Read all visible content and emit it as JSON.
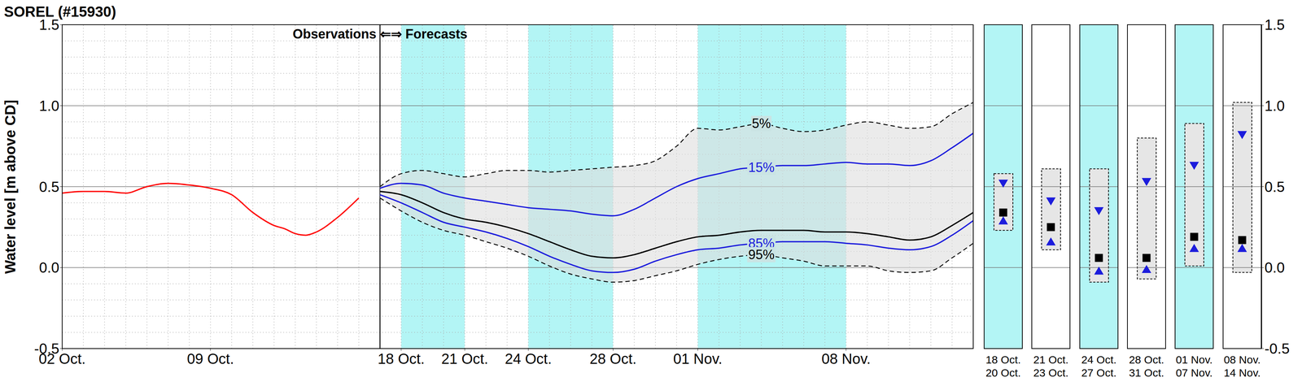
{
  "chart_data": [
    {
      "type": "line",
      "title": "SOREL (#15930)",
      "ylabel": "Water level [m above CD]",
      "annotation": "Observations ⇐⇒ Forecasts",
      "forecast_start": 17,
      "xlim": [
        2,
        45
      ],
      "xticks": [
        {
          "value": 2,
          "label": "02 Oct."
        },
        {
          "value": 9,
          "label": "09 Oct."
        },
        {
          "value": 18,
          "label": "18 Oct."
        },
        {
          "value": 21,
          "label": "21 Oct."
        },
        {
          "value": 24,
          "label": "24 Oct."
        },
        {
          "value": 28,
          "label": "28 Oct."
        },
        {
          "value": 32,
          "label": "01 Nov."
        },
        {
          "value": 39,
          "label": "08 Nov."
        }
      ],
      "ylim": [
        -0.5,
        1.5
      ],
      "yticks": [
        -0.5,
        {
          "value": 0,
          "label": "0.0"
        },
        0.5,
        {
          "value": 1,
          "label": "1.0"
        },
        1.5
      ],
      "minor_yticks": [
        -0.4,
        -0.3,
        -0.2,
        -0.1,
        0.1,
        0.2,
        0.3,
        0.4,
        0.6,
        0.7,
        0.8,
        0.9,
        1.1,
        1.2,
        1.3,
        1.4
      ],
      "grid": true,
      "shaded_periods": [
        {
          "start": 18,
          "end": 21,
          "color": "#b3f5f5"
        },
        {
          "start": 24,
          "end": 28,
          "color": "#b3f5f5"
        },
        {
          "start": 32,
          "end": 39,
          "color": "#b3f5f5"
        }
      ],
      "band": {
        "upper": "5%",
        "lower": "95%",
        "color": "#dedede"
      },
      "series": [
        {
          "color": "#ff0000",
          "x": [
            2,
            3,
            4,
            5,
            6,
            7,
            8,
            9,
            10,
            11,
            12,
            12.5,
            13,
            13.5,
            14,
            15,
            16
          ],
          "values": [
            0.46,
            0.47,
            0.47,
            0.46,
            0.5,
            0.52,
            0.51,
            0.49,
            0.45,
            0.34,
            0.26,
            0.24,
            0.21,
            0.2,
            0.22,
            0.31,
            0.43
          ]
        },
        {
          "name": "5%",
          "color": "#000000",
          "line_style": "dashed",
          "x": [
            17,
            18,
            19,
            20,
            21,
            22,
            23,
            24,
            25,
            26,
            27,
            28,
            29,
            30,
            31,
            32,
            33,
            34,
            35,
            36,
            37,
            38,
            39,
            40,
            41,
            42,
            43,
            44,
            45
          ],
          "values": [
            0.5,
            0.58,
            0.6,
            0.58,
            0.56,
            0.58,
            0.6,
            0.6,
            0.59,
            0.6,
            0.61,
            0.62,
            0.63,
            0.66,
            0.75,
            0.86,
            0.85,
            0.87,
            0.89,
            0.86,
            0.84,
            0.85,
            0.88,
            0.9,
            0.88,
            0.86,
            0.87,
            0.95,
            1.02
          ]
        },
        {
          "name": "15%",
          "color": "#1c1cdc",
          "line_style": "solid",
          "x": [
            17,
            18,
            19,
            20,
            21,
            22,
            23,
            24,
            25,
            26,
            27,
            28,
            29,
            30,
            31,
            32,
            33,
            34,
            35,
            36,
            37,
            38,
            39,
            40,
            41,
            42,
            43,
            44,
            45
          ],
          "values": [
            0.49,
            0.52,
            0.51,
            0.46,
            0.43,
            0.41,
            0.39,
            0.37,
            0.36,
            0.35,
            0.33,
            0.32,
            0.36,
            0.43,
            0.5,
            0.55,
            0.58,
            0.61,
            0.62,
            0.63,
            0.63,
            0.64,
            0.65,
            0.64,
            0.64,
            0.63,
            0.66,
            0.74,
            0.83
          ]
        },
        {
          "color": "#000000",
          "line_style": "solid",
          "x": [
            17,
            18,
            19,
            20,
            21,
            22,
            23,
            24,
            25,
            26,
            27,
            28,
            29,
            30,
            31,
            32,
            33,
            34,
            35,
            36,
            37,
            38,
            39,
            40,
            41,
            42,
            43,
            44,
            45
          ],
          "values": [
            0.47,
            0.45,
            0.4,
            0.34,
            0.3,
            0.28,
            0.25,
            0.21,
            0.16,
            0.11,
            0.07,
            0.06,
            0.08,
            0.12,
            0.16,
            0.19,
            0.2,
            0.22,
            0.23,
            0.23,
            0.23,
            0.22,
            0.22,
            0.21,
            0.19,
            0.17,
            0.19,
            0.26,
            0.34
          ]
        },
        {
          "name": "85%",
          "color": "#1c1cdc",
          "line_style": "solid",
          "x": [
            17,
            18,
            19,
            20,
            21,
            22,
            23,
            24,
            25,
            26,
            27,
            28,
            29,
            30,
            31,
            32,
            33,
            34,
            35,
            36,
            37,
            38,
            39,
            40,
            41,
            42,
            43,
            44,
            45
          ],
          "values": [
            0.45,
            0.4,
            0.34,
            0.28,
            0.25,
            0.22,
            0.18,
            0.13,
            0.07,
            0.02,
            -0.02,
            -0.03,
            -0.01,
            0.04,
            0.08,
            0.11,
            0.12,
            0.14,
            0.15,
            0.16,
            0.16,
            0.16,
            0.15,
            0.14,
            0.12,
            0.11,
            0.13,
            0.2,
            0.29
          ]
        },
        {
          "name": "95%",
          "color": "#000000",
          "line_style": "dashed",
          "x": [
            17,
            18,
            19,
            20,
            21,
            22,
            23,
            24,
            25,
            26,
            27,
            28,
            29,
            30,
            31,
            32,
            33,
            34,
            35,
            36,
            37,
            38,
            39,
            40,
            41,
            42,
            43,
            44,
            45
          ],
          "values": [
            0.43,
            0.35,
            0.28,
            0.23,
            0.2,
            0.16,
            0.12,
            0.07,
            0.01,
            -0.04,
            -0.07,
            -0.09,
            -0.08,
            -0.05,
            -0.02,
            0.02,
            0.05,
            0.07,
            0.08,
            0.06,
            0.04,
            0.01,
            0.01,
            0.01,
            -0.02,
            -0.03,
            -0.02,
            0.06,
            0.15
          ]
        }
      ]
    },
    {
      "type": "box",
      "categories": [
        [
          "18 Oct.",
          "20 Oct."
        ],
        [
          "21 Oct.",
          "23 Oct."
        ],
        [
          "24 Oct.",
          "27 Oct."
        ],
        [
          "28 Oct.",
          "31 Oct."
        ],
        [
          "01 Nov.",
          "07 Nov."
        ],
        [
          "08 Nov.",
          "14 Nov."
        ]
      ],
      "colors": [
        "#b3f5f5",
        "#ffffff",
        "#b3f5f5",
        "#ffffff",
        "#b3f5f5",
        "#ffffff"
      ],
      "box_low": [
        0.23,
        0.11,
        -0.09,
        -0.07,
        0.01,
        -0.03
      ],
      "box_high": [
        0.58,
        0.61,
        0.61,
        0.8,
        0.89,
        1.02
      ],
      "color": "#e6e6e6",
      "series": [
        {
          "marker": "triangle-down",
          "color": "#1c1cdc",
          "values": [
            0.52,
            0.41,
            0.35,
            0.53,
            0.63,
            0.82
          ]
        },
        {
          "marker": "triangle-up",
          "color": "#1c1cdc",
          "values": [
            0.29,
            0.16,
            -0.02,
            -0.01,
            0.12,
            0.12
          ]
        },
        {
          "marker": "square",
          "color": "#000000",
          "values": [
            0.34,
            0.25,
            0.06,
            0.06,
            0.19,
            0.17
          ]
        }
      ],
      "ylim": [
        -0.5,
        1.5
      ],
      "yticks": [
        -0.5,
        {
          "value": 0,
          "label": "0.0"
        },
        0.5,
        {
          "value": 1,
          "label": "1.0"
        },
        1.5
      ],
      "grid": true
    }
  ]
}
